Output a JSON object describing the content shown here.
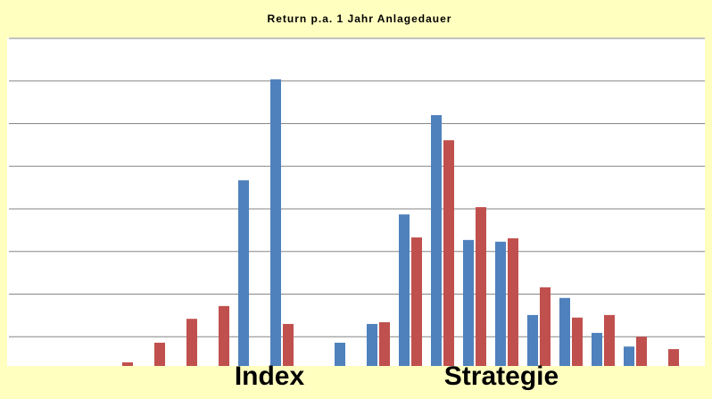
{
  "chart_data": {
    "type": "bar",
    "title": "Return p.a. 1 Jahr Anlagedauer",
    "categories": [
      null,
      null,
      null,
      null,
      null,
      null,
      null,
      null,
      null,
      null,
      null,
      null,
      null,
      null,
      null,
      null,
      null,
      null,
      null,
      null,
      null,
      null
    ],
    "series": [
      {
        "name": "Index",
        "color": "#4f81bd",
        "values": [
          0,
          0,
          0,
          0,
          0,
          0,
          0,
          4.67,
          7.04,
          0,
          0.86,
          1.3,
          3.87,
          6.2,
          3.27,
          3.23,
          1.51,
          1.91,
          1.09,
          0.77,
          0,
          0
        ]
      },
      {
        "name": "Strategie",
        "color": "#c0504d",
        "values": [
          0,
          0,
          0,
          0.4,
          0.86,
          1.42,
          1.72,
          0,
          1.3,
          0,
          0,
          1.34,
          3.33,
          5.61,
          4.04,
          3.31,
          2.16,
          1.45,
          1.51,
          1.0,
          0.71,
          0
        ]
      }
    ],
    "ylim": [
      0,
      8
    ],
    "yticks": [
      1,
      2,
      3,
      4,
      5,
      6,
      7,
      8
    ],
    "grid": true
  }
}
